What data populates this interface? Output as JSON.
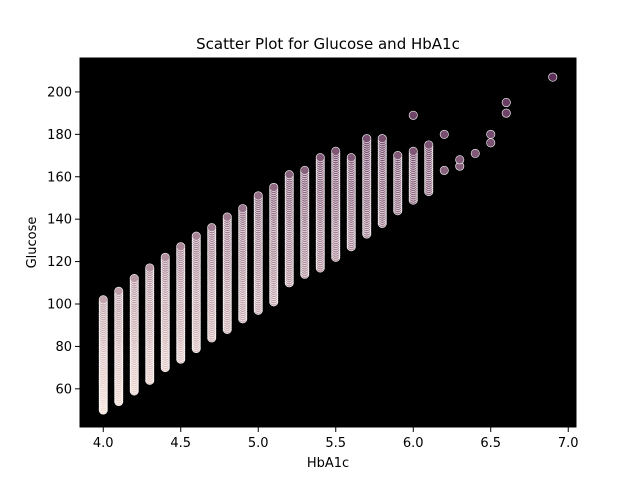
{
  "chart_data": {
    "type": "scatter",
    "title": "Scatter Plot for Glucose and HbA1c",
    "xlabel": "HbA1c",
    "ylabel": "Glucose",
    "xlim": [
      3.85,
      7.05
    ],
    "ylim": [
      42,
      216
    ],
    "xticks": [
      4.0,
      4.5,
      5.0,
      5.5,
      6.0,
      6.5,
      7.0
    ],
    "xtick_labels": [
      "4.0",
      "4.5",
      "5.0",
      "5.5",
      "6.0",
      "6.5",
      "7.0"
    ],
    "yticks": [
      60,
      80,
      100,
      120,
      140,
      160,
      180,
      200
    ],
    "ytick_labels": [
      "60",
      "80",
      "100",
      "120",
      "140",
      "160",
      "180",
      "200"
    ],
    "grid": false,
    "legend": "none",
    "background_color": "#000000",
    "color_light": "#f6dfd6",
    "color_dark": "#5a2c57",
    "columns": [
      {
        "x": 4.0,
        "y_min": 50,
        "y_max": 102
      },
      {
        "x": 4.1,
        "y_min": 54,
        "y_max": 106
      },
      {
        "x": 4.2,
        "y_min": 59,
        "y_max": 112
      },
      {
        "x": 4.3,
        "y_min": 64,
        "y_max": 117
      },
      {
        "x": 4.4,
        "y_min": 70,
        "y_max": 122
      },
      {
        "x": 4.5,
        "y_min": 74,
        "y_max": 127
      },
      {
        "x": 4.6,
        "y_min": 79,
        "y_max": 132
      },
      {
        "x": 4.7,
        "y_min": 84,
        "y_max": 136
      },
      {
        "x": 4.8,
        "y_min": 88,
        "y_max": 141
      },
      {
        "x": 4.9,
        "y_min": 93,
        "y_max": 145
      },
      {
        "x": 5.0,
        "y_min": 97,
        "y_max": 151
      },
      {
        "x": 5.1,
        "y_min": 101,
        "y_max": 155
      },
      {
        "x": 5.2,
        "y_min": 110,
        "y_max": 161
      },
      {
        "x": 5.3,
        "y_min": 114,
        "y_max": 163
      },
      {
        "x": 5.4,
        "y_min": 117,
        "y_max": 169
      },
      {
        "x": 5.5,
        "y_min": 122,
        "y_max": 172
      },
      {
        "x": 5.6,
        "y_min": 127,
        "y_max": 169
      },
      {
        "x": 5.7,
        "y_min": 133,
        "y_max": 178
      },
      {
        "x": 5.8,
        "y_min": 138,
        "y_max": 178
      },
      {
        "x": 5.9,
        "y_min": 144,
        "y_max": 170
      },
      {
        "x": 6.0,
        "y_min": 149,
        "y_max": 172
      },
      {
        "x": 6.1,
        "y_min": 153,
        "y_max": 175
      }
    ],
    "points": [
      {
        "x": 6.0,
        "y": 189
      },
      {
        "x": 6.2,
        "y": 180
      },
      {
        "x": 6.2,
        "y": 163
      },
      {
        "x": 6.3,
        "y": 165
      },
      {
        "x": 6.3,
        "y": 168
      },
      {
        "x": 6.4,
        "y": 171
      },
      {
        "x": 6.5,
        "y": 176
      },
      {
        "x": 6.5,
        "y": 180
      },
      {
        "x": 6.6,
        "y": 190
      },
      {
        "x": 6.6,
        "y": 195
      },
      {
        "x": 6.9,
        "y": 207
      }
    ]
  }
}
